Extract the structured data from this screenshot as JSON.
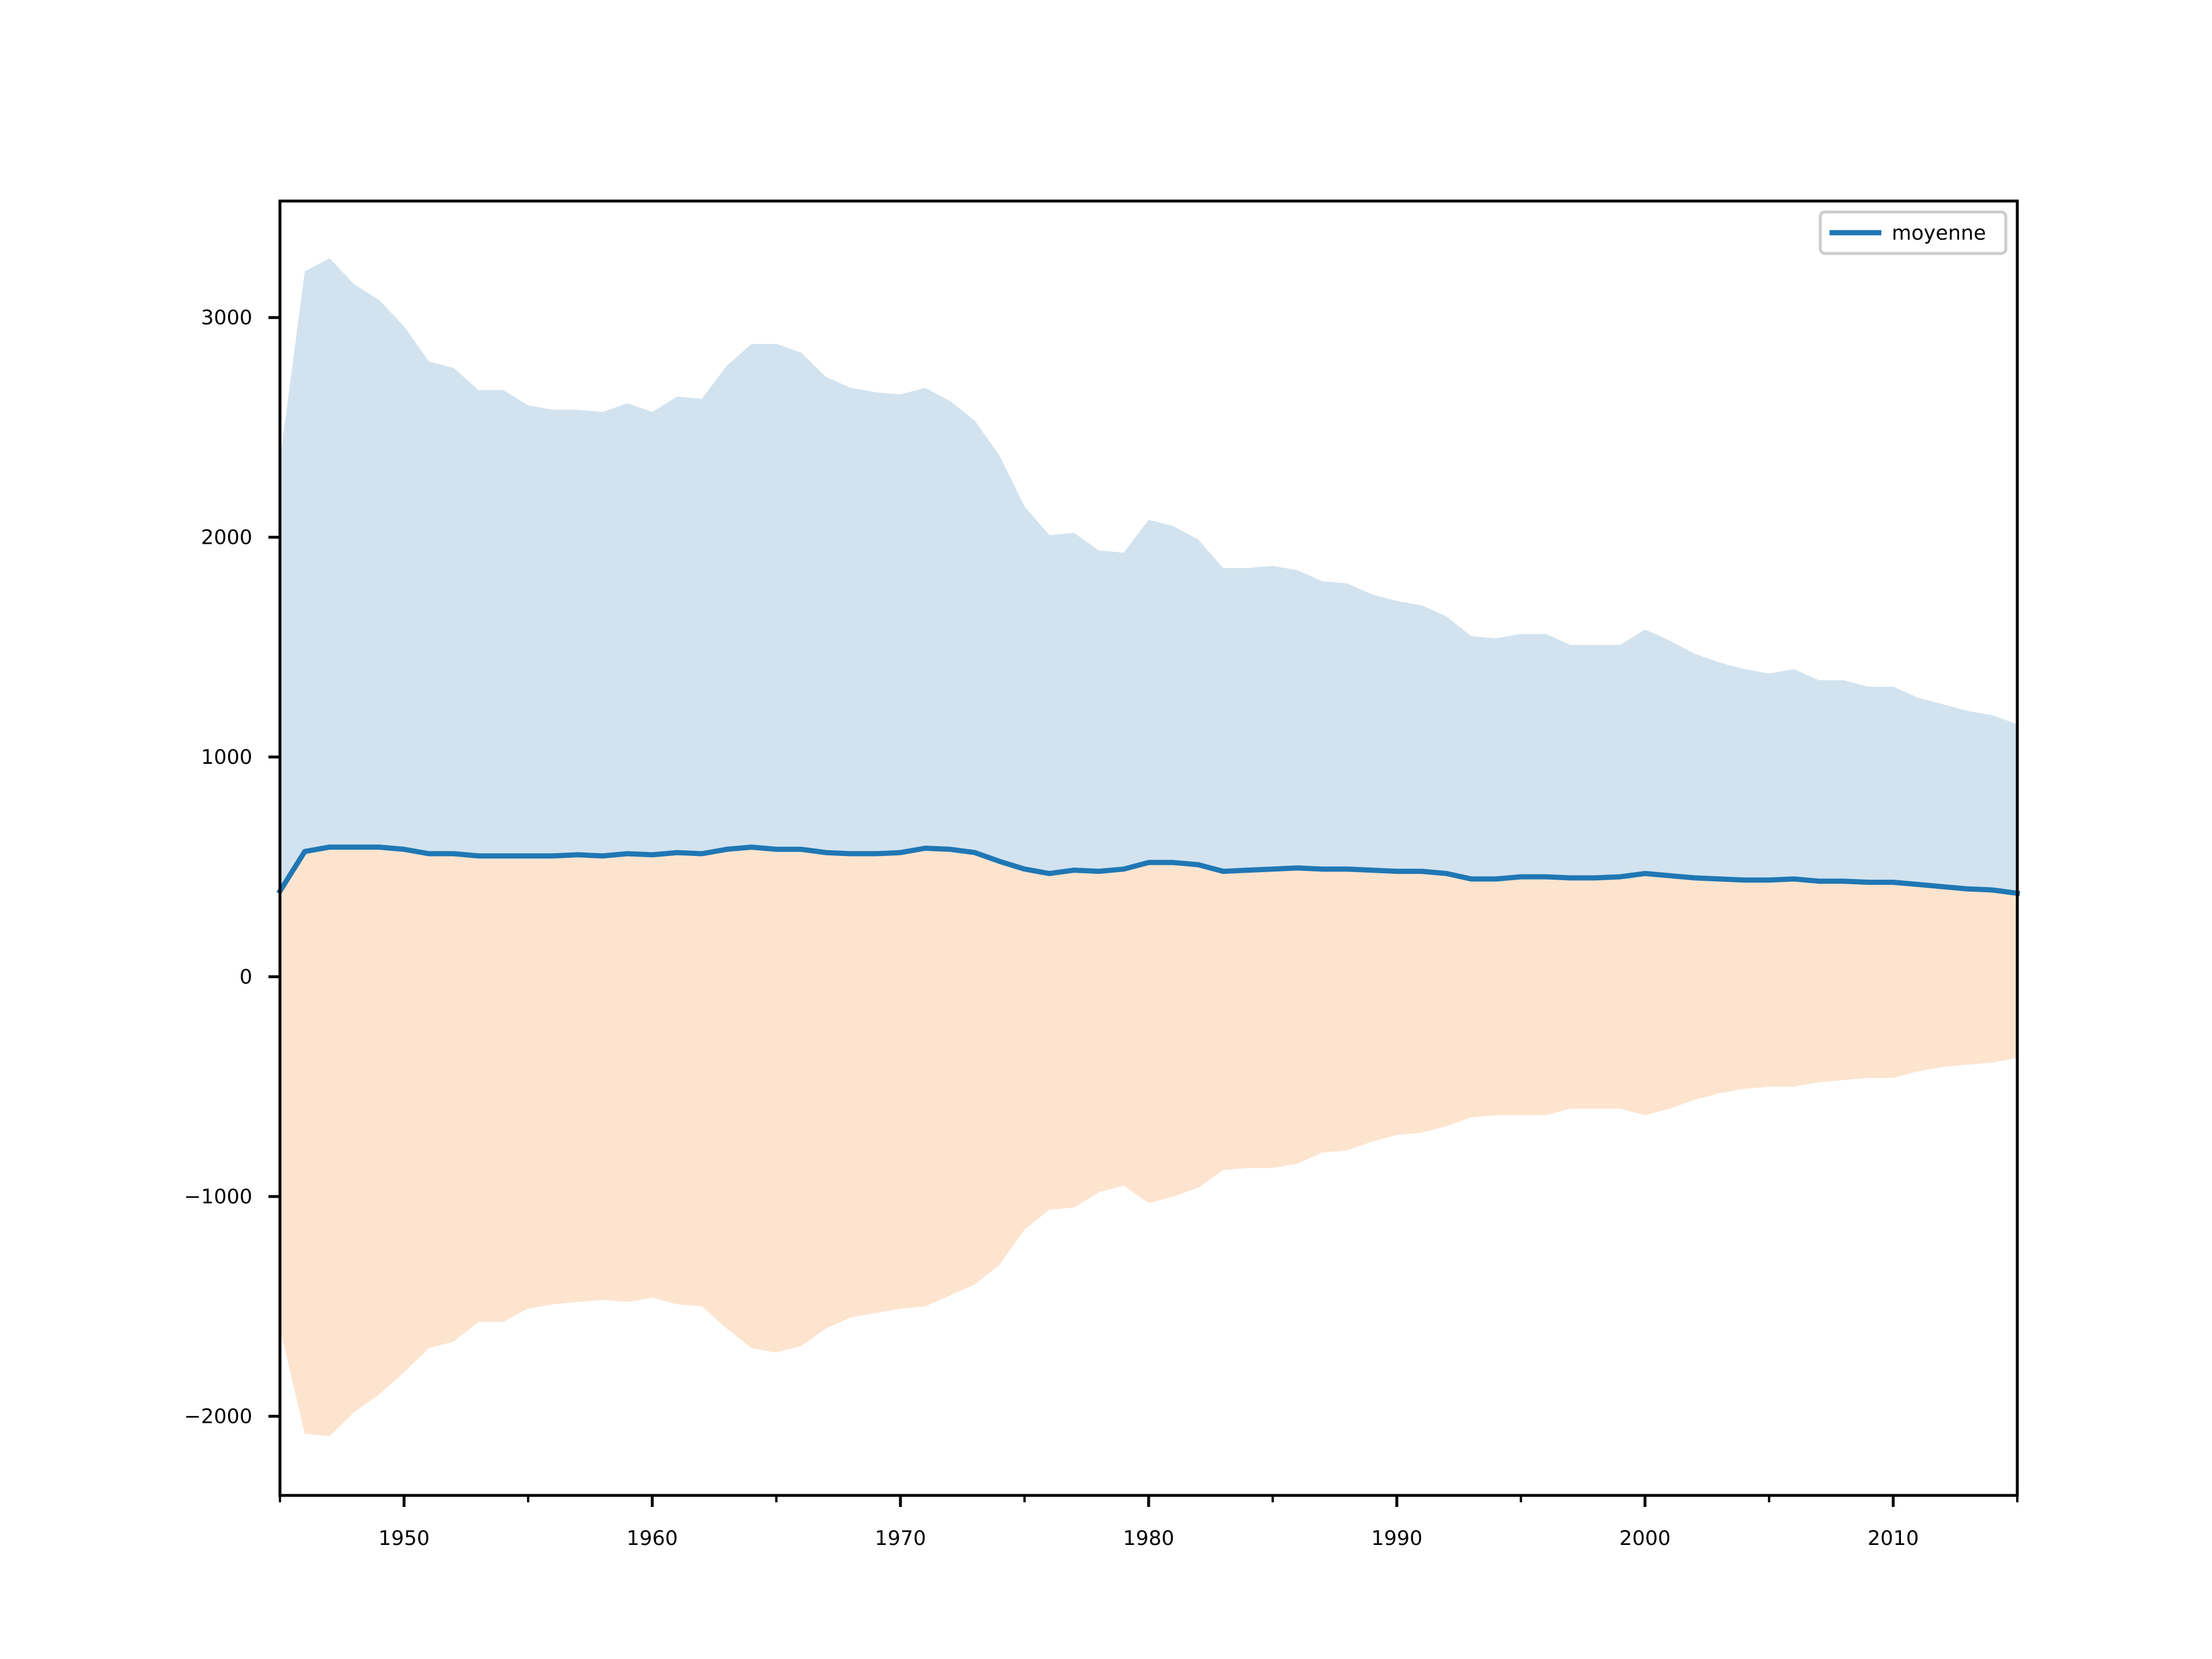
{
  "chart_data": {
    "type": "area",
    "x_range": [
      1945,
      2015
    ],
    "y_range": [
      -2360,
      3530
    ],
    "x_ticks": [
      1950,
      1960,
      1970,
      1980,
      1990,
      2000,
      2010
    ],
    "x_minor_ticks": [
      1945,
      1955,
      1965,
      1975,
      1985,
      1995,
      2005,
      2015
    ],
    "x_tick_labels": [
      "1950",
      "1960",
      "1970",
      "1980",
      "1990",
      "2000",
      "2010"
    ],
    "y_ticks": [
      -2000,
      -1000,
      0,
      1000,
      2000,
      3000
    ],
    "y_tick_labels": [
      "−2000",
      "−1000",
      "0",
      "1000",
      "2000",
      "3000"
    ],
    "grid": false,
    "legend": {
      "position": "top-right",
      "entries": [
        "moyenne"
      ]
    },
    "colors": {
      "mean": "#1f77b4",
      "upper_band": "#d2e3ef",
      "lower_band": "#fde4cf"
    },
    "x": [
      1945,
      1946,
      1947,
      1948,
      1949,
      1950,
      1951,
      1952,
      1953,
      1954,
      1955,
      1956,
      1957,
      1958,
      1959,
      1960,
      1961,
      1962,
      1963,
      1964,
      1965,
      1966,
      1967,
      1968,
      1969,
      1970,
      1971,
      1972,
      1973,
      1974,
      1975,
      1976,
      1977,
      1978,
      1979,
      1980,
      1981,
      1982,
      1983,
      1984,
      1985,
      1986,
      1987,
      1988,
      1989,
      1990,
      1991,
      1992,
      1993,
      1994,
      1995,
      1996,
      1997,
      1998,
      1999,
      2000,
      2001,
      2002,
      2003,
      2004,
      2005,
      2006,
      2007,
      2008,
      2009,
      2010,
      2011,
      2012,
      2013,
      2014,
      2015
    ],
    "series": [
      {
        "name": "moyenne",
        "role": "line",
        "values": [
          390,
          570,
          590,
          590,
          590,
          580,
          560,
          560,
          550,
          550,
          550,
          550,
          555,
          550,
          560,
          555,
          565,
          560,
          580,
          590,
          580,
          580,
          565,
          560,
          560,
          565,
          585,
          580,
          565,
          525,
          490,
          470,
          485,
          480,
          490,
          520,
          520,
          510,
          480,
          485,
          490,
          495,
          490,
          490,
          485,
          480,
          480,
          470,
          445,
          445,
          455,
          455,
          450,
          450,
          455,
          470,
          460,
          450,
          445,
          440,
          440,
          445,
          435,
          435,
          430,
          430,
          420,
          410,
          400,
          395,
          380
        ]
      },
      {
        "name": "",
        "role": "upper_band_top",
        "values": [
          2350,
          3210,
          3270,
          3150,
          3080,
          2960,
          2800,
          2770,
          2670,
          2670,
          2600,
          2580,
          2580,
          2570,
          2610,
          2570,
          2640,
          2630,
          2780,
          2880,
          2880,
          2840,
          2730,
          2680,
          2660,
          2650,
          2680,
          2620,
          2530,
          2370,
          2140,
          2010,
          2020,
          1940,
          1930,
          2080,
          2050,
          1990,
          1860,
          1860,
          1870,
          1850,
          1800,
          1790,
          1740,
          1710,
          1690,
          1640,
          1550,
          1540,
          1560,
          1560,
          1510,
          1510,
          1510,
          1580,
          1530,
          1470,
          1430,
          1400,
          1380,
          1400,
          1350,
          1350,
          1320,
          1320,
          1270,
          1240,
          1210,
          1190,
          1150
        ]
      },
      {
        "name": "",
        "role": "lower_band_bottom",
        "values": [
          -1600,
          -2080,
          -2090,
          -1980,
          -1900,
          -1800,
          -1690,
          -1660,
          -1570,
          -1570,
          -1510,
          -1490,
          -1480,
          -1470,
          -1480,
          -1460,
          -1490,
          -1500,
          -1600,
          -1690,
          -1710,
          -1680,
          -1600,
          -1550,
          -1530,
          -1510,
          -1500,
          -1450,
          -1400,
          -1310,
          -1150,
          -1060,
          -1050,
          -980,
          -950,
          -1030,
          -1000,
          -960,
          -880,
          -870,
          -870,
          -850,
          -800,
          -790,
          -750,
          -720,
          -710,
          -680,
          -640,
          -630,
          -630,
          -630,
          -600,
          -600,
          -600,
          -630,
          -600,
          -560,
          -530,
          -510,
          -500,
          -500,
          -480,
          -470,
          -460,
          -460,
          -430,
          -410,
          -400,
          -390,
          -370
        ]
      }
    ]
  }
}
